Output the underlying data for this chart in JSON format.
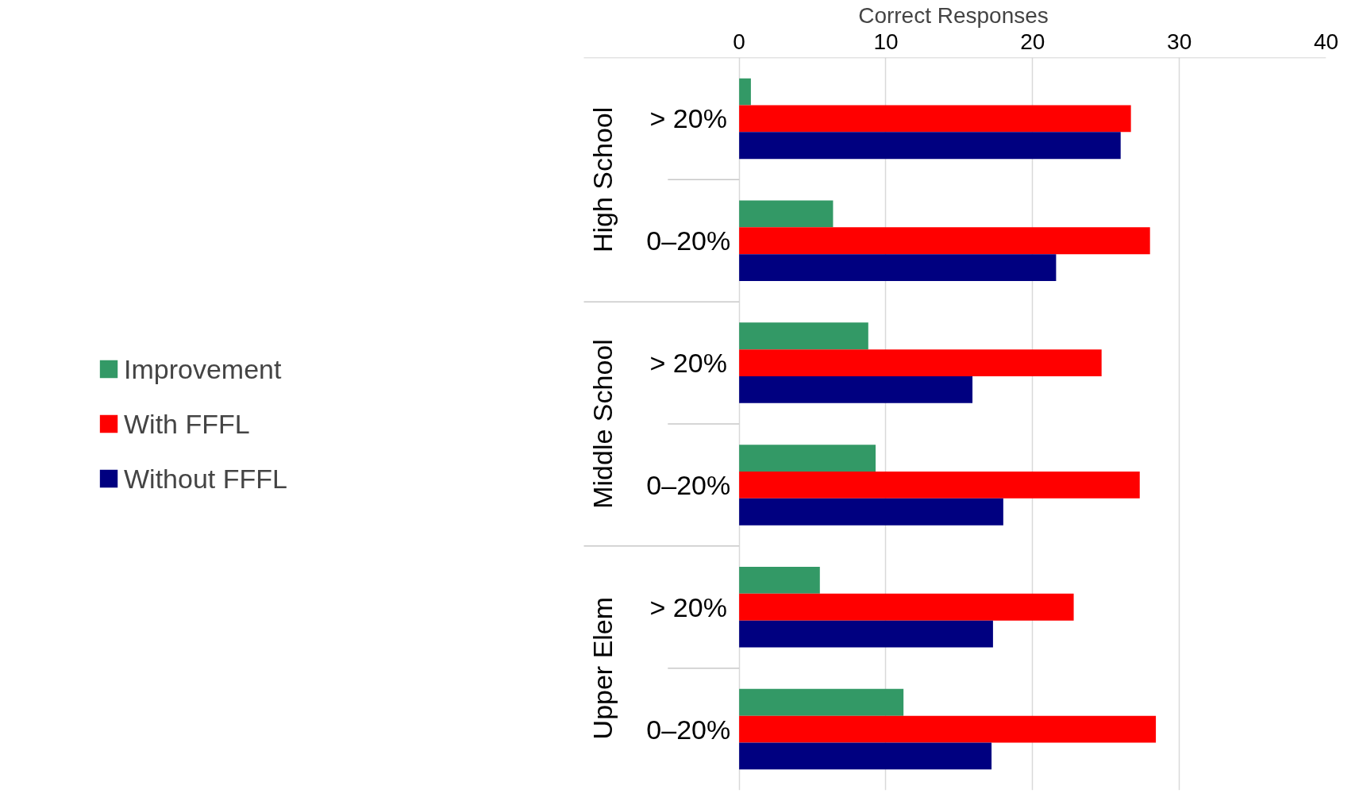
{
  "chart_data": {
    "type": "bar",
    "orientation": "horizontal",
    "xlabel": "Correct Responses",
    "categories": [
      "> 20%",
      "0–20%",
      "> 20%",
      "0–20%",
      "> 20%",
      "0–20%"
    ],
    "annotations": [
      "High School",
      "Middle School",
      "Upper Elem"
    ],
    "series": [
      {
        "name": "Improvement",
        "color": "#339966",
        "values": [
          0.8,
          6.4,
          8.8,
          9.3,
          5.5,
          11.2
        ]
      },
      {
        "name": "With FFFL",
        "color": "#ff0000",
        "values": [
          26.7,
          28.0,
          24.7,
          27.3,
          22.8,
          28.4
        ]
      },
      {
        "name": "Without FFFL",
        "color": "#000080",
        "values": [
          26.0,
          21.6,
          15.9,
          18.0,
          17.3,
          17.2
        ]
      }
    ],
    "xlim": [
      0,
      40
    ],
    "xticks": [
      0,
      10,
      20,
      30,
      40
    ],
    "grid": "x",
    "legend": "left"
  }
}
